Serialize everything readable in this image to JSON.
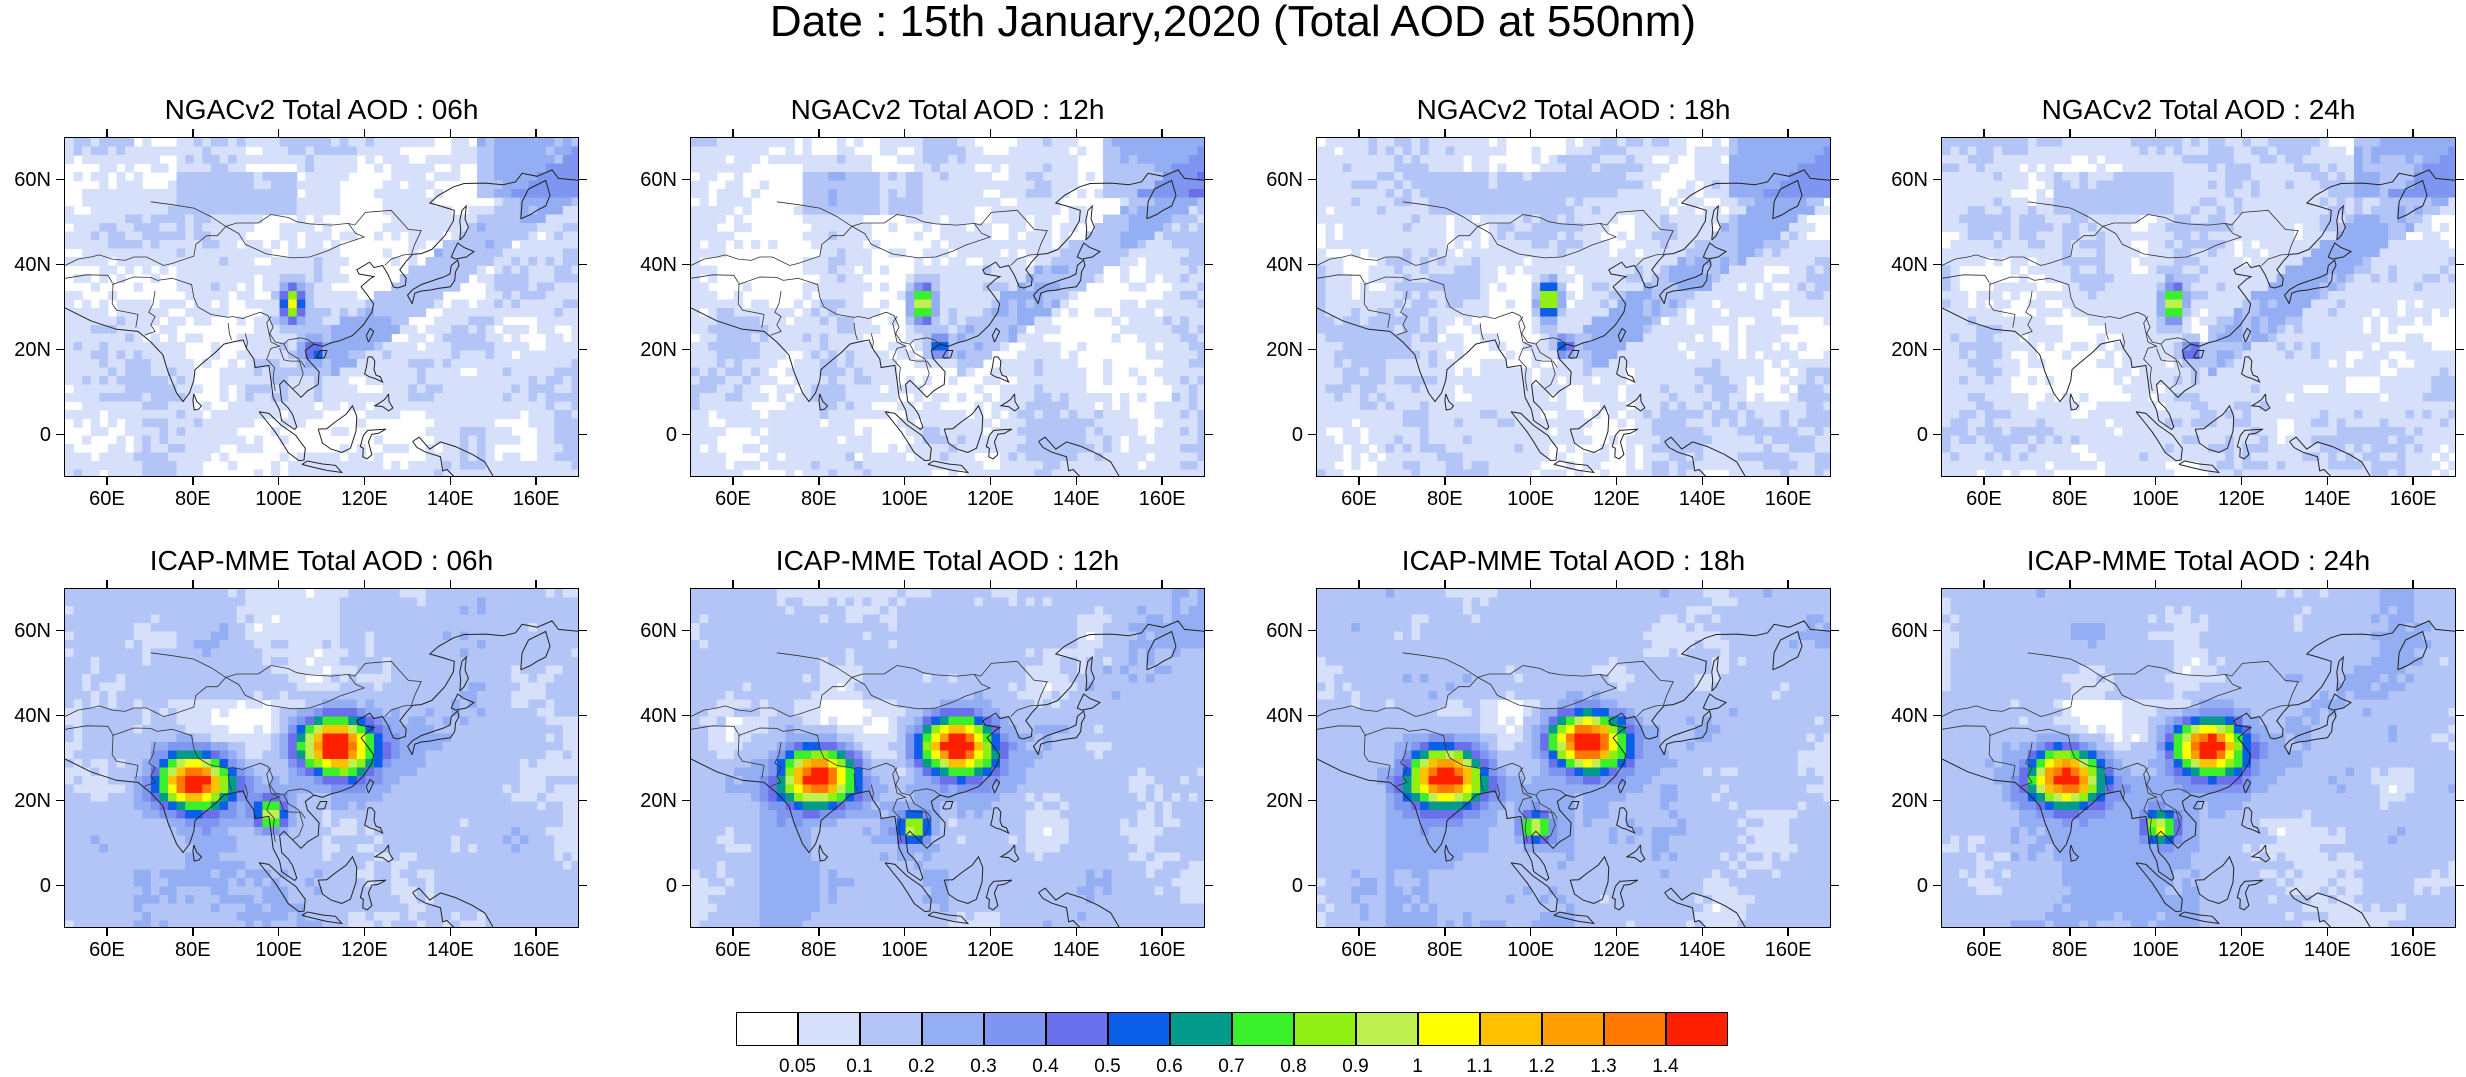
{
  "title": "Date : 15th January,2020 (Total AOD at 550nm)",
  "map_axes": {
    "x_ticks": [
      "60E",
      "80E",
      "100E",
      "120E",
      "140E",
      "160E"
    ],
    "y_ticks": [
      "60N",
      "40N",
      "20N",
      "0"
    ]
  },
  "panels": [
    {
      "title": "NGACv2 Total AOD : 06h",
      "model": "NGACv2",
      "hour": "06h",
      "max_aod": 0.9,
      "hotspots": [
        {
          "lon": 103,
          "lat": 31,
          "level": 0.9
        },
        {
          "lon": 108,
          "lat": 20,
          "level": 0.5
        }
      ]
    },
    {
      "title": "NGACv2 Total AOD : 12h",
      "model": "NGACv2",
      "hour": "12h",
      "max_aod": 1.0,
      "hotspots": [
        {
          "lon": 104,
          "lat": 31,
          "level": 1.0
        },
        {
          "lon": 108,
          "lat": 21,
          "level": 0.5
        }
      ]
    },
    {
      "title": "NGACv2 Total AOD : 18h",
      "model": "NGACv2",
      "hour": "18h",
      "max_aod": 1.0,
      "hotspots": [
        {
          "lon": 104,
          "lat": 32,
          "level": 1.0
        },
        {
          "lon": 108,
          "lat": 21,
          "level": 0.5
        }
      ]
    },
    {
      "title": "NGACv2 Total AOD : 24h",
      "model": "NGACv2",
      "hour": "24h",
      "max_aod": 1.0,
      "hotspots": [
        {
          "lon": 104,
          "lat": 31,
          "level": 1.0
        },
        {
          "lon": 108,
          "lat": 20,
          "level": 0.5
        }
      ]
    },
    {
      "title": "ICAP-MME Total AOD : 06h",
      "model": "ICAP-MME",
      "hour": "06h",
      "max_aod": 1.4,
      "hotspots": [
        {
          "lon": 113,
          "lat": 33,
          "level": 1.4
        },
        {
          "lon": 80,
          "lat": 25,
          "level": 1.4
        },
        {
          "lon": 98,
          "lat": 17,
          "level": 0.8
        }
      ]
    },
    {
      "title": "ICAP-MME Total AOD : 12h",
      "model": "ICAP-MME",
      "hour": "12h",
      "max_aod": 1.4,
      "hotspots": [
        {
          "lon": 112,
          "lat": 33,
          "level": 1.4
        },
        {
          "lon": 80,
          "lat": 26,
          "level": 1.4
        },
        {
          "lon": 102,
          "lat": 14,
          "level": 0.8
        }
      ]
    },
    {
      "title": "ICAP-MME Total AOD : 18h",
      "model": "ICAP-MME",
      "hour": "18h",
      "max_aod": 1.4,
      "hotspots": [
        {
          "lon": 113,
          "lat": 34,
          "level": 1.4
        },
        {
          "lon": 80,
          "lat": 26,
          "level": 1.4
        },
        {
          "lon": 101,
          "lat": 14,
          "level": 0.8
        }
      ]
    },
    {
      "title": "ICAP-MME Total AOD : 24h",
      "model": "ICAP-MME",
      "hour": "24h",
      "max_aod": 1.4,
      "hotspots": [
        {
          "lon": 112,
          "lat": 33,
          "level": 1.4
        },
        {
          "lon": 79,
          "lat": 26,
          "level": 1.4
        },
        {
          "lon": 101,
          "lat": 14,
          "level": 0.8
        }
      ]
    }
  ],
  "colorbar": {
    "labels": [
      "0.05",
      "0.1",
      "0.2",
      "0.3",
      "0.4",
      "0.5",
      "0.6",
      "0.7",
      "0.8",
      "0.9",
      "1",
      "1.1",
      "1.2",
      "1.3",
      "1.4"
    ],
    "colors": [
      "#ffffff",
      "#d6e0fb",
      "#b3c4f6",
      "#94aef3",
      "#7f96f0",
      "#6a70eb",
      "#0a5ee8",
      "#049a8c",
      "#3af02a",
      "#90f014",
      "#c0f050",
      "#ffff00",
      "#ffc000",
      "#ffa000",
      "#ff7800",
      "#ff2000"
    ]
  }
}
